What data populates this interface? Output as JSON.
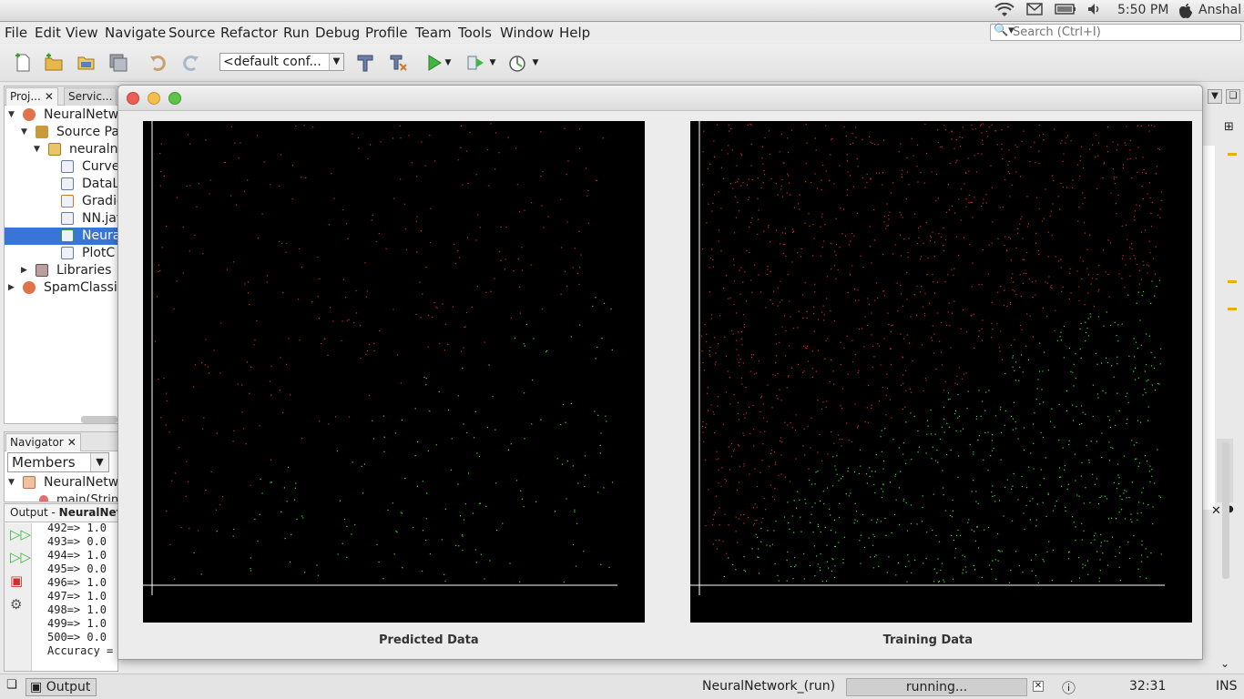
{
  "system_bar": {
    "time": "5:50 PM",
    "user": "Anshal",
    "icons": [
      "wifi-icon",
      "mail-icon",
      "battery-icon",
      "volume-icon",
      "apple-icon"
    ]
  },
  "menu": {
    "items": [
      "File",
      "Edit",
      "View",
      "Navigate",
      "Source",
      "Refactor",
      "Run",
      "Debug",
      "Profile",
      "Team",
      "Tools",
      "Window",
      "Help"
    ],
    "search_placeholder": "Search (Ctrl+I)"
  },
  "toolbar": {
    "config_value": "<default conf...",
    "icons": [
      "new-file-icon",
      "new-project-icon",
      "open-project-icon",
      "save-all-icon",
      "undo-icon",
      "redo-icon",
      "build-icon",
      "clean-build-icon",
      "run-icon",
      "debug-icon",
      "profile-icon"
    ]
  },
  "projects_panel": {
    "tabs": [
      "Proj...",
      "Servic..."
    ],
    "tree": [
      {
        "label": "NeuralNetw",
        "depth": 0,
        "expanded": true
      },
      {
        "label": "Source Pa",
        "depth": 1,
        "expanded": true
      },
      {
        "label": "neuraln",
        "depth": 2,
        "expanded": true
      },
      {
        "label": "Curve",
        "depth": 3
      },
      {
        "label": "DataL",
        "depth": 3
      },
      {
        "label": "Gradie",
        "depth": 3
      },
      {
        "label": "NN.jav",
        "depth": 3
      },
      {
        "label": "Neura",
        "depth": 3,
        "selected": true
      },
      {
        "label": "PlotC",
        "depth": 3
      },
      {
        "label": "Libraries",
        "depth": 1,
        "expanded": false
      },
      {
        "label": "SpamClassif",
        "depth": 0,
        "expanded": false
      }
    ]
  },
  "navigator_panel": {
    "tab": "Navigator",
    "filter_value": "Members",
    "items": [
      "NeuralNetw",
      "main(Strin"
    ]
  },
  "output_panel": {
    "tab_prefix": "Output - ",
    "tab_name": "NeuralNetw",
    "lines": [
      "492=> 1.0",
      "493=> 0.0",
      "494=> 1.0",
      "495=> 0.0",
      "496=> 1.0",
      "497=> 1.0",
      "498=> 1.0",
      "499=> 1.0",
      "500=> 0.0",
      "Accuracy ="
    ]
  },
  "plot_window": {
    "plots": [
      {
        "label": "Predicted Data"
      },
      {
        "label": "Training Data"
      }
    ],
    "colors": {
      "positive": "#3adc3a",
      "negative": "#d22a2a",
      "axis": "#ffffff",
      "background": "#000000"
    }
  },
  "status_bar": {
    "output_button": "Output",
    "run_name": "NeuralNetwork_(run)",
    "progress_text": "running...",
    "caret_position": "32:31",
    "insert_mode": "INS"
  }
}
